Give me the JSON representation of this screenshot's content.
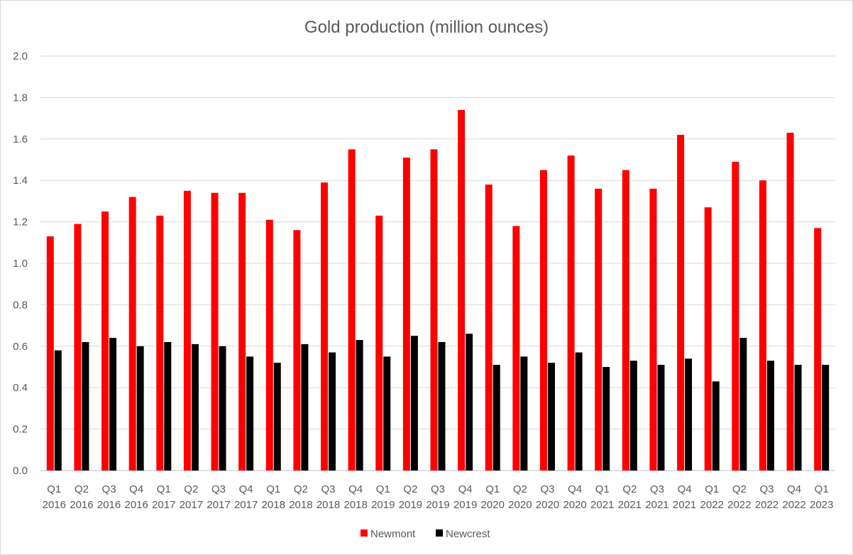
{
  "chart_data": {
    "type": "bar",
    "title": "Gold production (million ounces)",
    "xlabel": "",
    "ylabel": "",
    "ylim": [
      0,
      2.0
    ],
    "yticks": [
      "0.0",
      "0.2",
      "0.4",
      "0.6",
      "0.8",
      "1.0",
      "1.2",
      "1.4",
      "1.6",
      "1.8",
      "2.0"
    ],
    "grid": true,
    "legend_position": "bottom",
    "categories": [
      [
        "Q1",
        "2016"
      ],
      [
        "Q2",
        "2016"
      ],
      [
        "Q3",
        "2016"
      ],
      [
        "Q4",
        "2016"
      ],
      [
        "Q1",
        "2017"
      ],
      [
        "Q2",
        "2017"
      ],
      [
        "Q3",
        "2017"
      ],
      [
        "Q4",
        "2017"
      ],
      [
        "Q1",
        "2018"
      ],
      [
        "Q2",
        "2018"
      ],
      [
        "Q3",
        "2018"
      ],
      [
        "Q4",
        "2018"
      ],
      [
        "Q1",
        "2019"
      ],
      [
        "Q2",
        "2019"
      ],
      [
        "Q3",
        "2019"
      ],
      [
        "Q4",
        "2019"
      ],
      [
        "Q1",
        "2020"
      ],
      [
        "Q2",
        "2020"
      ],
      [
        "Q3",
        "2020"
      ],
      [
        "Q4",
        "2020"
      ],
      [
        "Q1",
        "2021"
      ],
      [
        "Q2",
        "2021"
      ],
      [
        "Q3",
        "2021"
      ],
      [
        "Q4",
        "2021"
      ],
      [
        "Q1",
        "2022"
      ],
      [
        "Q2",
        "2022"
      ],
      [
        "Q3",
        "2022"
      ],
      [
        "Q4",
        "2022"
      ],
      [
        "Q1",
        "2023"
      ]
    ],
    "series": [
      {
        "name": "Newmont",
        "color": "#ff0000",
        "values": [
          1.13,
          1.19,
          1.25,
          1.32,
          1.23,
          1.35,
          1.34,
          1.34,
          1.21,
          1.16,
          1.39,
          1.55,
          1.23,
          1.51,
          1.55,
          1.74,
          1.38,
          1.18,
          1.45,
          1.52,
          1.36,
          1.45,
          1.36,
          1.62,
          1.27,
          1.49,
          1.4,
          1.63,
          1.17
        ]
      },
      {
        "name": "Newcrest",
        "color": "#000000",
        "values": [
          0.58,
          0.62,
          0.64,
          0.6,
          0.62,
          0.61,
          0.6,
          0.55,
          0.52,
          0.61,
          0.57,
          0.63,
          0.55,
          0.65,
          0.62,
          0.66,
          0.51,
          0.55,
          0.52,
          0.57,
          0.5,
          0.53,
          0.51,
          0.54,
          0.43,
          0.64,
          0.53,
          0.51,
          0.51
        ]
      }
    ]
  }
}
